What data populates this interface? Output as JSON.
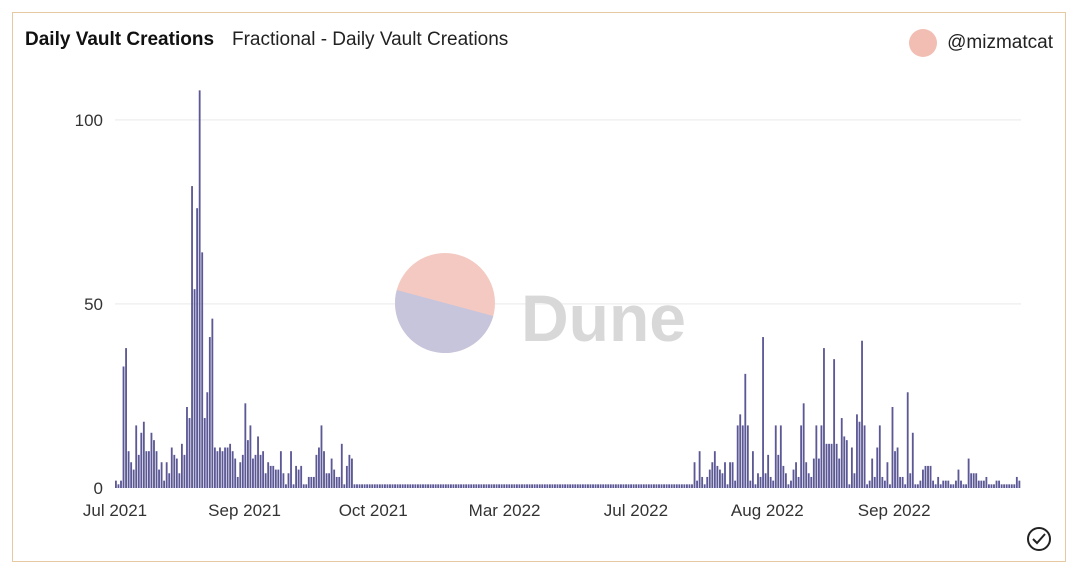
{
  "header": {
    "title": "Daily Vault Creations",
    "subtitle": "Fractional - Daily Vault Creations",
    "author": "@mizmatcat"
  },
  "colors": {
    "bar": "#5b5895",
    "grid": "#e9e9e9",
    "avatar": "#f2bdb3",
    "watermark_top": "#f4c9c2",
    "watermark_bottom": "#c6c5dc",
    "watermark_text": "#d8d8d8",
    "border": "#e6c9a3"
  },
  "watermark": {
    "text": "Dune"
  },
  "icons": {
    "status": "check-circle-icon"
  },
  "chart_data": {
    "type": "bar",
    "ylim": [
      0,
      110
    ],
    "y_ticks": [
      0,
      50,
      100
    ],
    "x_tick_labels": [
      "Jul 2021",
      "Sep 2021",
      "Oct 2021",
      "Mar 2022",
      "Jul 2022",
      "Aug 2022",
      "Sep 2022"
    ],
    "grid": true,
    "note_x": "bars are daily values in chronological order (approx. 300 days, Jul 2021 – late Sep 2022)",
    "values": [
      2,
      1,
      2,
      33,
      38,
      10,
      7,
      5,
      17,
      9,
      15,
      18,
      10,
      10,
      15,
      13,
      10,
      5,
      7,
      2,
      7,
      4,
      11,
      9,
      8,
      4,
      12,
      9,
      22,
      19,
      82,
      54,
      76,
      108,
      64,
      19,
      26,
      41,
      46,
      11,
      10,
      11,
      10,
      11,
      11,
      12,
      10,
      8,
      3,
      7,
      9,
      23,
      13,
      17,
      8,
      9,
      14,
      9,
      10,
      4,
      7,
      6,
      6,
      5,
      5,
      10,
      4,
      1,
      4,
      10,
      1,
      6,
      5,
      6,
      1,
      1,
      3,
      3,
      3,
      9,
      11,
      17,
      10,
      4,
      4,
      8,
      5,
      3,
      3,
      12,
      1,
      6,
      9,
      8,
      1,
      1,
      1,
      1,
      1,
      1,
      1,
      1,
      1,
      1,
      1,
      1,
      1,
      1,
      1,
      1,
      1,
      1,
      1,
      1,
      1,
      1,
      1,
      1,
      1,
      1,
      1,
      1,
      1,
      1,
      1,
      1,
      1,
      1,
      1,
      1,
      1,
      1,
      1,
      1,
      1,
      1,
      1,
      1,
      1,
      1,
      1,
      1,
      1,
      1,
      1,
      1,
      1,
      1,
      1,
      1,
      1,
      1,
      1,
      1,
      1,
      1,
      1,
      1,
      1,
      1,
      1,
      1,
      1,
      1,
      1,
      1,
      1,
      1,
      1,
      1,
      1,
      1,
      1,
      1,
      1,
      1,
      1,
      1,
      1,
      1,
      1,
      1,
      1,
      1,
      1,
      1,
      1,
      1,
      1,
      1,
      1,
      1,
      1,
      1,
      1,
      1,
      1,
      1,
      1,
      1,
      1,
      1,
      1,
      1,
      1,
      1,
      1,
      1,
      1,
      1,
      1,
      1,
      1,
      1,
      1,
      1,
      1,
      1,
      1,
      1,
      1,
      1,
      1,
      1,
      1,
      1,
      1,
      1,
      7,
      2,
      10,
      3,
      1,
      3,
      5,
      7,
      10,
      6,
      5,
      4,
      7,
      1,
      7,
      7,
      2,
      17,
      20,
      17,
      31,
      17,
      2,
      10,
      1,
      4,
      3,
      41,
      4,
      9,
      3,
      2,
      17,
      9,
      17,
      6,
      4,
      1,
      2,
      5,
      7,
      3,
      17,
      23,
      7,
      4,
      3,
      8,
      17,
      8,
      17,
      38,
      12,
      12,
      12,
      35,
      12,
      8,
      19,
      14,
      13,
      1,
      11,
      4,
      20,
      18,
      40,
      17,
      1,
      2,
      8,
      3,
      11,
      17,
      3,
      2,
      7,
      1,
      22,
      10,
      11,
      3,
      3,
      1,
      26,
      4,
      15,
      1,
      1,
      2,
      5,
      6,
      6,
      6,
      2,
      1,
      3,
      1,
      2,
      2,
      2,
      1,
      1,
      2,
      5,
      2,
      1,
      1,
      8,
      4,
      4,
      4,
      2,
      2,
      2,
      3,
      1,
      1,
      1,
      2,
      2,
      1,
      1,
      1,
      1,
      1,
      1,
      3,
      2
    ]
  }
}
